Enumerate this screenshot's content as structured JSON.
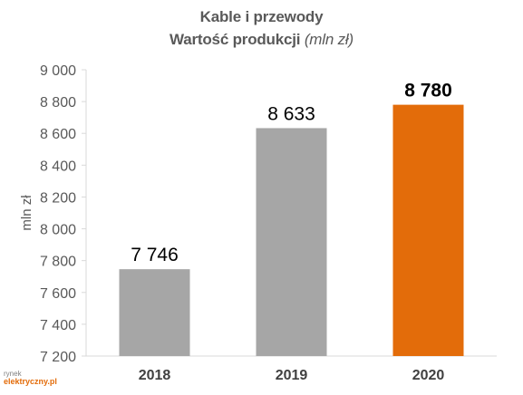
{
  "chart_data": {
    "type": "bar",
    "title": "Kable i przewody",
    "subtitle_text": "Wartość produkcji",
    "subtitle_unit": "(mln zł)",
    "ylabel": "mln zł",
    "ylim": [
      7200,
      9000
    ],
    "yticks": [
      7200,
      7400,
      7600,
      7800,
      8000,
      8200,
      8400,
      8600,
      8800,
      9000
    ],
    "ytick_labels": [
      "7 200",
      "7 400",
      "7 600",
      "7 800",
      "8 000",
      "8 200",
      "8 400",
      "8 600",
      "8 800",
      "9 000"
    ],
    "categories": [
      "2018",
      "2019",
      "2020"
    ],
    "values": [
      7746,
      8633,
      8780
    ],
    "value_labels": [
      "7 746",
      "8 633",
      "8 780"
    ],
    "colors": [
      "#a6a6a6",
      "#a6a6a6",
      "#e36c0a"
    ],
    "highlight_index": 2,
    "grid": false
  },
  "logo": {
    "line1": "rynek",
    "line2": "elektryczny.pl"
  }
}
